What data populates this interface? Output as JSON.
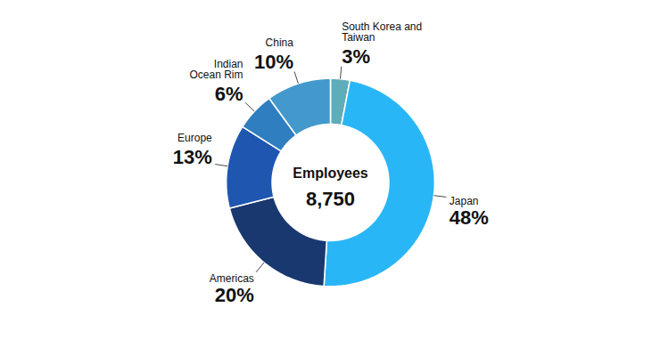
{
  "chart_data": {
    "type": "donut",
    "categories": [
      "South Korea and\nTaiwan",
      "Japan",
      "Americas",
      "Europe",
      "Indian\nOcean Rim",
      "China"
    ],
    "values": [
      3,
      48,
      20,
      13,
      6,
      10
    ],
    "colors": [
      "#5eadb8",
      "#29b6f6",
      "#1a3870",
      "#1e56b0",
      "#2e7ec0",
      "#4499cc"
    ],
    "annotations": [
      "Employees",
      "8,750"
    ],
    "data_labels": true,
    "value_labels": [
      "3%",
      "48%",
      "20%",
      "13%",
      "6%",
      "10%"
    ]
  }
}
